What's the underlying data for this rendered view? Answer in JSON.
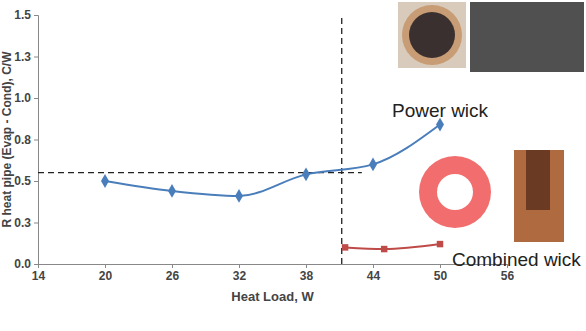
{
  "chart_data": {
    "type": "line",
    "x_label": "Heat Load, W",
    "y_label": "R heat pipe (Evap - Cond), C/W",
    "xlim": [
      14,
      56
    ],
    "xticks": [
      14,
      20,
      26,
      32,
      38,
      44,
      50,
      56
    ],
    "ylim": [
      0,
      1.5
    ],
    "yticks": [
      {
        "value": 0,
        "label": "0.0"
      },
      {
        "value": 0.25,
        "label": "0.3"
      },
      {
        "value": 0.5,
        "label": "0.5"
      },
      {
        "value": 0.75,
        "label": "0.8"
      },
      {
        "value": 1.0,
        "label": "1.0"
      },
      {
        "value": 1.25,
        "label": "1.3"
      },
      {
        "value": 1.5,
        "label": "1.5"
      }
    ],
    "grid": false,
    "series": [
      {
        "name": "Power wick",
        "color": "#4a7ebb",
        "marker": "diamond",
        "x": [
          20,
          26,
          32,
          38,
          44,
          50
        ],
        "values": [
          0.5,
          0.44,
          0.41,
          0.54,
          0.6,
          0.84
        ]
      },
      {
        "name": "Combined wick",
        "color": "#be4b48",
        "marker": "square",
        "x": [
          41.5,
          45,
          50
        ],
        "values": [
          0.1,
          0.09,
          0.12
        ]
      }
    ],
    "reference_lines": [
      {
        "x": [
          41.2,
          41.2
        ],
        "y": [
          0,
          1.5
        ],
        "line_style": "dashed"
      },
      {
        "x": [
          14,
          43
        ],
        "y": [
          0.55,
          0.55
        ],
        "line_style": "dashed"
      }
    ]
  }
}
